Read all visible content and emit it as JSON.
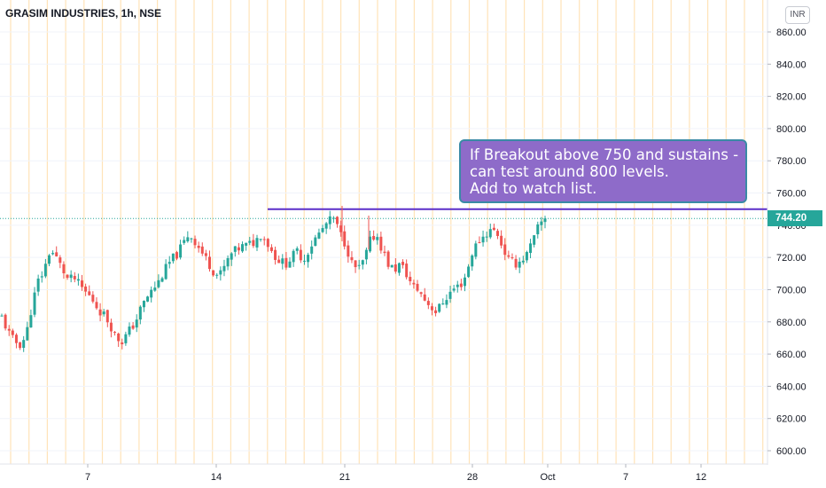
{
  "header": {
    "title": "GRASIM INDUSTRIES, 1h, NSE",
    "currency": "INR"
  },
  "annotation": {
    "lines": [
      "If Breakout above 750 and sustains  -",
      "can test around 800 levels.",
      "Add to watch list."
    ]
  },
  "last_price_label": "744.20",
  "colors": {
    "up": "#26a69a",
    "down": "#ef5350",
    "resistance_line": "#5b2fc9",
    "note_fill": "#8e6bc9",
    "session_lines": "#ffe3b8",
    "last_price_line": "#26a69a"
  },
  "chart_data": {
    "type": "candlestick",
    "ylim": [
      595,
      868
    ],
    "y_ticks": [
      "860.00",
      "840.00",
      "820.00",
      "800.00",
      "780.00",
      "760.00",
      "740.00",
      "720.00",
      "700.00",
      "680.00",
      "660.00",
      "640.00",
      "620.00",
      "600.00"
    ],
    "x_ticks": [
      "7",
      "14",
      "21",
      "28",
      "Oct",
      "7",
      "12"
    ],
    "resistance_level": 750,
    "last_price": 744.2,
    "close_path": [
      683,
      674,
      668,
      666,
      671,
      690,
      705,
      712,
      725,
      720,
      713,
      706,
      707,
      702,
      698,
      694,
      688,
      684,
      678,
      670,
      668,
      674,
      679,
      688,
      695,
      700,
      705,
      712,
      718,
      722,
      728,
      735,
      730,
      724,
      718,
      712,
      708,
      715,
      722,
      725,
      727,
      728,
      730,
      735,
      729,
      722,
      718,
      716,
      720,
      724,
      718,
      726,
      732,
      737,
      742,
      744,
      735,
      728,
      716,
      712,
      718,
      730,
      735,
      725,
      716,
      712,
      716,
      710,
      702,
      700,
      694,
      690,
      686,
      692,
      697,
      701,
      703,
      710,
      724,
      730,
      734,
      737,
      736,
      726,
      718,
      716,
      718,
      722,
      730,
      740,
      744.2
    ]
  }
}
